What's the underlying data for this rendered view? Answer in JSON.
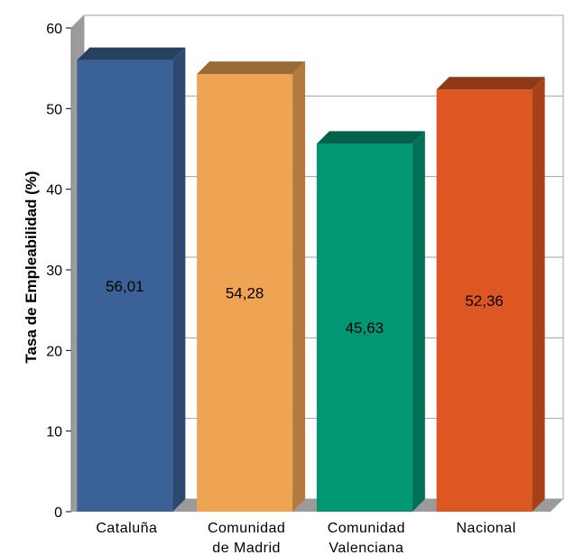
{
  "chart_data": {
    "type": "bar",
    "title": "",
    "xlabel": "",
    "ylabel": "Tasa de Empleabilidad (%)",
    "ylim": [
      0,
      60
    ],
    "yticks": [
      0,
      10,
      20,
      30,
      40,
      50,
      60
    ],
    "grid": true,
    "legend": "none",
    "three_d": true,
    "categories": [
      [
        "Cataluña"
      ],
      [
        "Comunidad",
        "de Madrid"
      ],
      [
        "Comunidad",
        "Valenciana"
      ],
      [
        "Nacional"
      ]
    ],
    "values": [
      56.01,
      54.28,
      45.63,
      52.36
    ],
    "data_labels": [
      "56,01",
      "54,28",
      "45,63",
      "52,36"
    ],
    "colors": [
      "#3b6296",
      "#eea453",
      "#009772",
      "#dd5722"
    ]
  }
}
